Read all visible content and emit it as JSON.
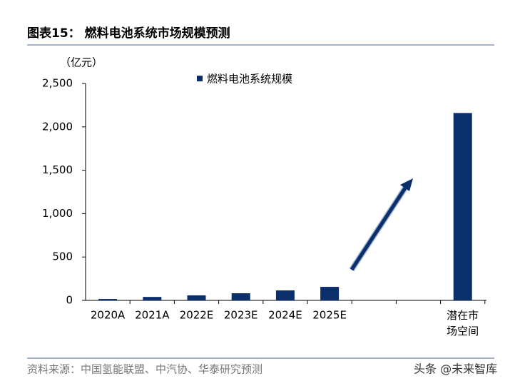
{
  "chart_data": {
    "type": "bar",
    "title": "图表15：  燃料电池系统市场规模预测",
    "y_label": "（亿元）",
    "categories": [
      "2020A",
      "2021A",
      "2022E",
      "2023E",
      "2024E",
      "2025E",
      null,
      null,
      "潜在市场空间"
    ],
    "series": [
      {
        "name": "燃料电池系统规模",
        "color": "#0b2f6b",
        "values": [
          16,
          40,
          58,
          82,
          115,
          156,
          null,
          null,
          2160
        ]
      }
    ],
    "ylim": [
      0,
      2500
    ],
    "yticks": [
      0,
      500,
      {
        "value": 1000,
        "label": "1,000"
      },
      {
        "value": 1500,
        "label": "1,500"
      },
      {
        "value": 2000,
        "label": "2,000"
      },
      {
        "value": 2500,
        "label": "2,500"
      }
    ],
    "grid": false,
    "legend": "top",
    "source": "资料来源：中国氢能联盟、中汽协、华泰研究预测",
    "watermark": "头条 @未来智库"
  }
}
